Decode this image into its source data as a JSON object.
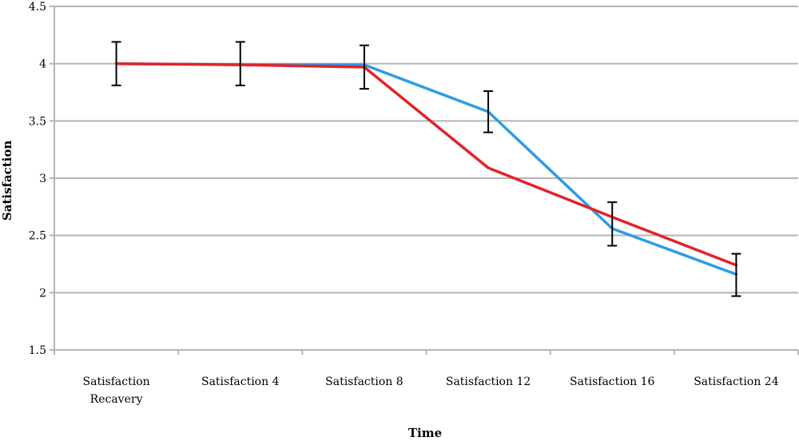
{
  "chart_data": {
    "type": "line",
    "title": "",
    "xlabel": "Time",
    "ylabel": "Satisfaction",
    "categories": [
      [
        "Satisfaction",
        "Recavery"
      ],
      [
        "Satisfaction 4"
      ],
      [
        "Satisfaction 8"
      ],
      [
        "Satisfaction 12"
      ],
      [
        "Satisfaction 16"
      ],
      [
        "Satisfaction 24"
      ]
    ],
    "ylim": [
      1.5,
      4.5
    ],
    "yticks": [
      1.5,
      2,
      2.5,
      3,
      3.5,
      4,
      4.5
    ],
    "ytick_labels": [
      "1.5",
      "2",
      "2.5",
      "3",
      "3.5",
      "4",
      "4.5"
    ],
    "grid": true,
    "series": [
      {
        "color": "#2e9be6",
        "values": [
          4.0,
          3.99,
          3.99,
          3.58,
          2.56,
          2.16
        ]
      },
      {
        "color": "#e1242a",
        "values": [
          4.0,
          3.99,
          3.97,
          3.09,
          2.66,
          2.24
        ]
      }
    ],
    "error_bars": [
      {
        "low": 3.81,
        "high": 4.19
      },
      {
        "low": 3.81,
        "high": 4.19
      },
      {
        "low": 3.78,
        "high": 4.16
      },
      {
        "low": 3.4,
        "high": 3.76
      },
      {
        "low": 2.41,
        "high": 2.79
      },
      {
        "low": 1.97,
        "high": 2.34
      }
    ]
  }
}
